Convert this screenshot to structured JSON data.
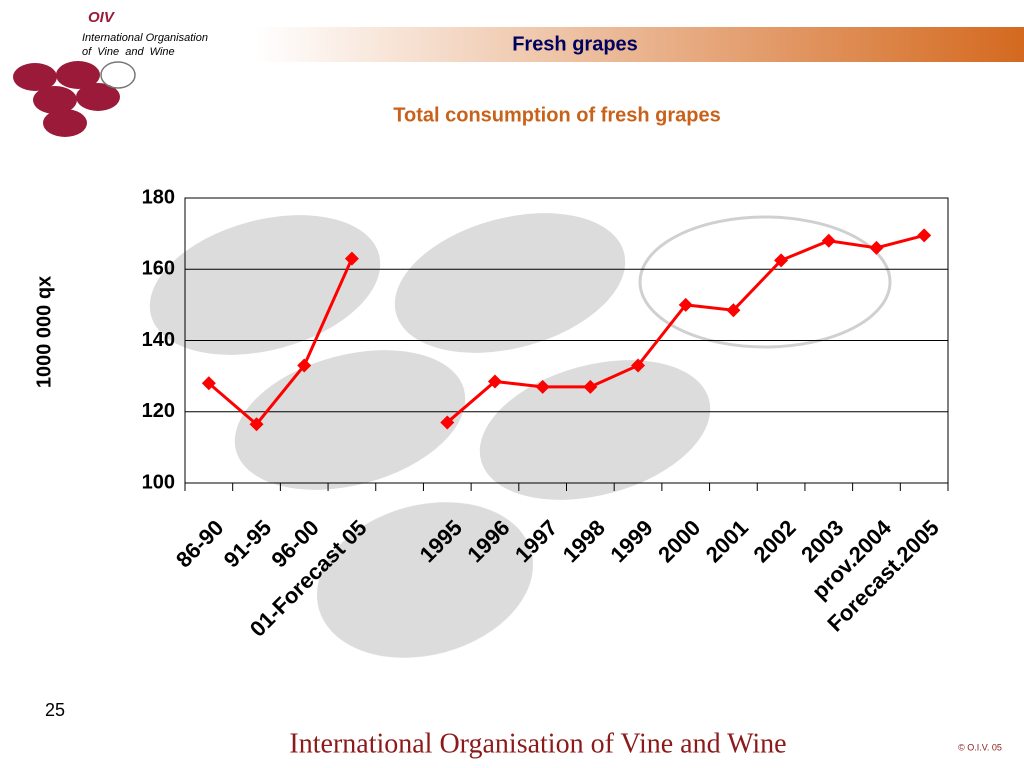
{
  "slide": {
    "logo": "OIV",
    "org_line1": "International Organisation",
    "org_line2": "of  Vine  and  Wine",
    "header": "Fresh grapes",
    "page_number": "25",
    "footer": "International Organisation of Vine and Wine",
    "copyright": "© O.I.V. 05"
  },
  "chart_data": {
    "type": "line",
    "title": "Total consumption of fresh grapes",
    "y_label": "1000 000 qx",
    "categories": [
      "86-90",
      "91-95",
      "96-00",
      "01-Forecast 05",
      null,
      "1995",
      "1996",
      "1997",
      "1998",
      "1999",
      "2000",
      "2001",
      "2002",
      "2003",
      "prov.2004",
      "Forecast.2005"
    ],
    "series": [
      {
        "name": null,
        "color": "#ff0000",
        "values": [
          128,
          116.5,
          133,
          163,
          null,
          117,
          128.5,
          127,
          127,
          133,
          150,
          148.5,
          162.5,
          168,
          166,
          169.5
        ]
      }
    ],
    "ylim": [
      100,
      180
    ],
    "yticks": [
      100,
      120,
      140,
      160,
      180
    ],
    "grid": true
  }
}
